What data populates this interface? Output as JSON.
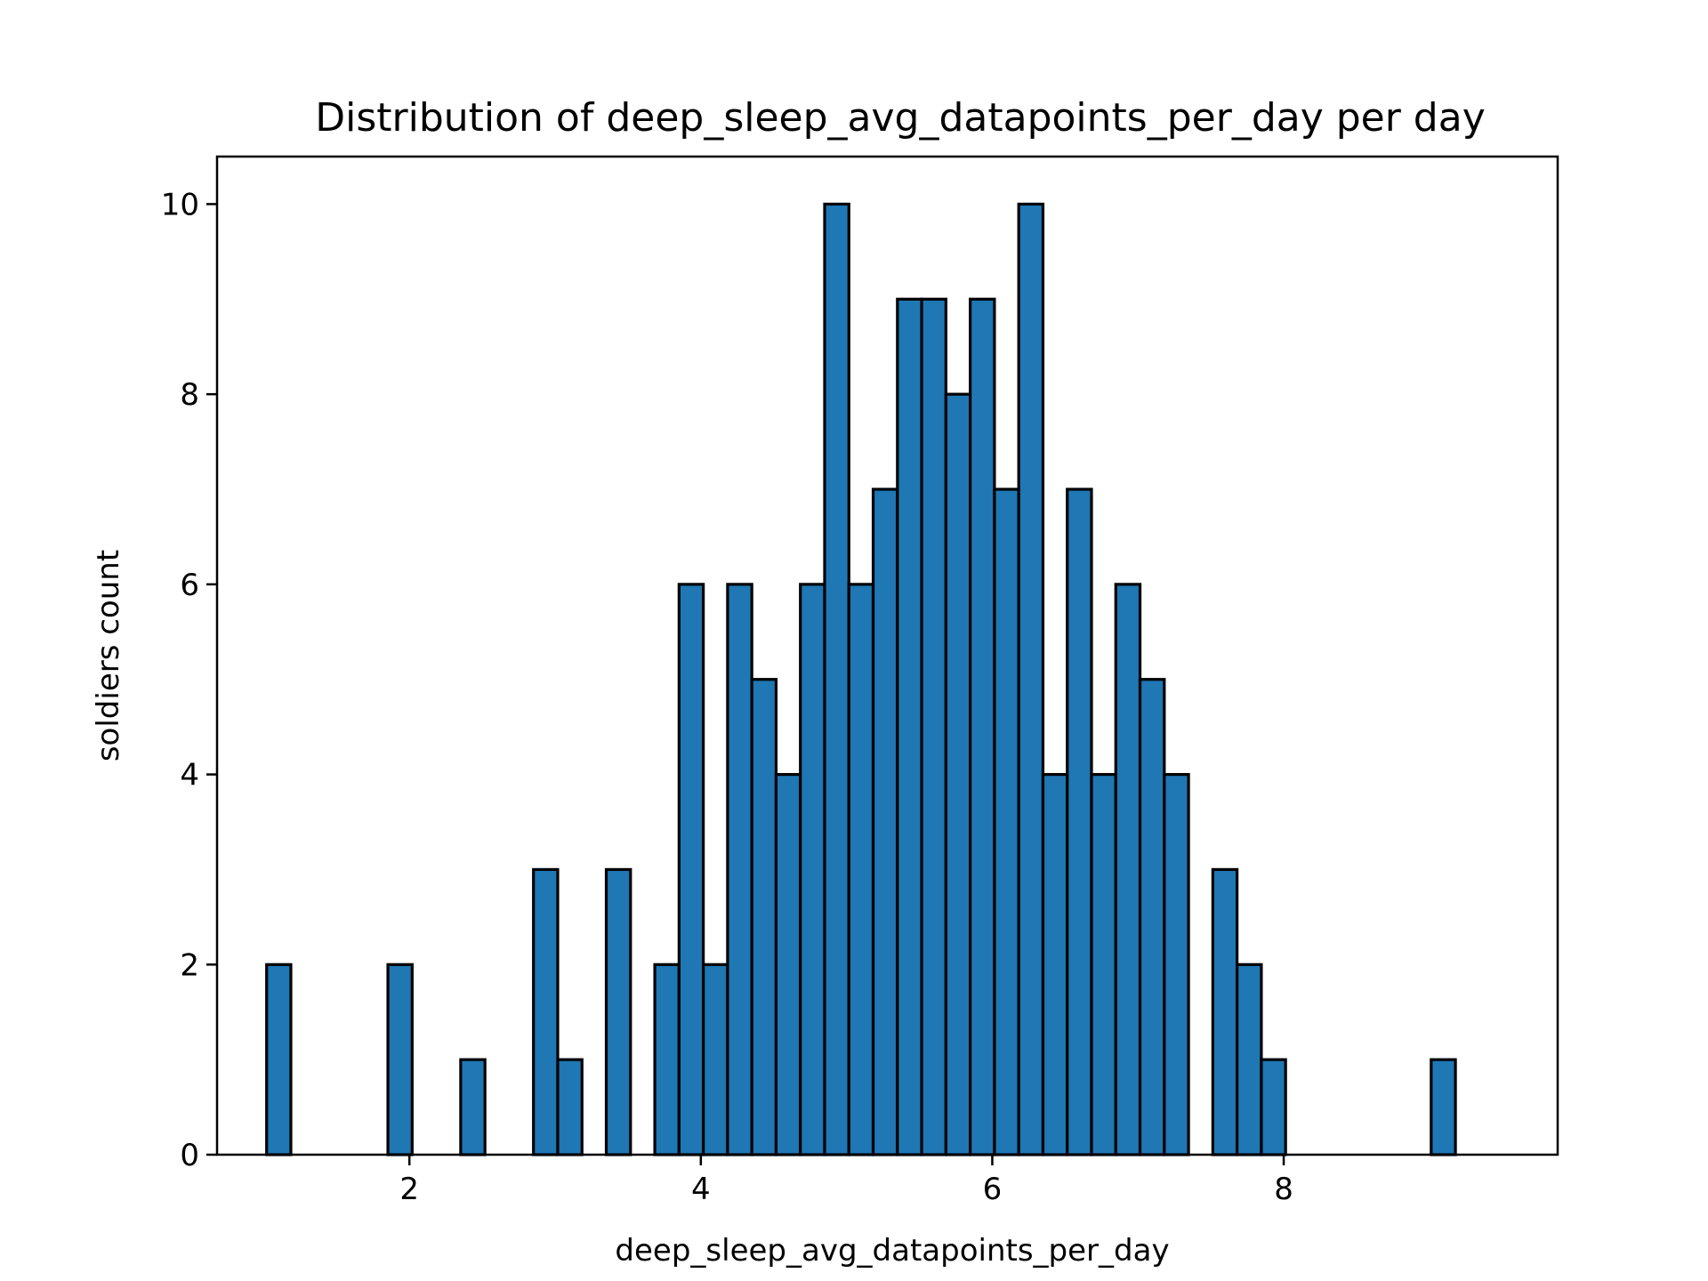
{
  "chart_data": {
    "type": "bar",
    "title": "Distribution of deep_sleep_avg_datapoints_per_day per day",
    "xlabel": "deep_sleep_avg_datapoints_per_day",
    "ylabel": "soldiers count",
    "xlim": [
      0.68,
      9.88
    ],
    "ylim": [
      0,
      10.5
    ],
    "xticks": [
      2,
      4,
      6,
      8
    ],
    "yticks": [
      0,
      2,
      4,
      6,
      8,
      10
    ],
    "bin_start": 1.02,
    "bin_width": 0.1665,
    "values": [
      2,
      0,
      0,
      0,
      0,
      2,
      0,
      0,
      1,
      0,
      0,
      3,
      1,
      0,
      3,
      0,
      2,
      6,
      2,
      6,
      5,
      4,
      6,
      10,
      6,
      7,
      9,
      9,
      8,
      9,
      7,
      10,
      4,
      7,
      4,
      6,
      5,
      4,
      0,
      3,
      2,
      1,
      0,
      0,
      0,
      0,
      0,
      0,
      1
    ],
    "bar_color": "#1f77b4",
    "edge_color": "#000000",
    "grid": false
  }
}
